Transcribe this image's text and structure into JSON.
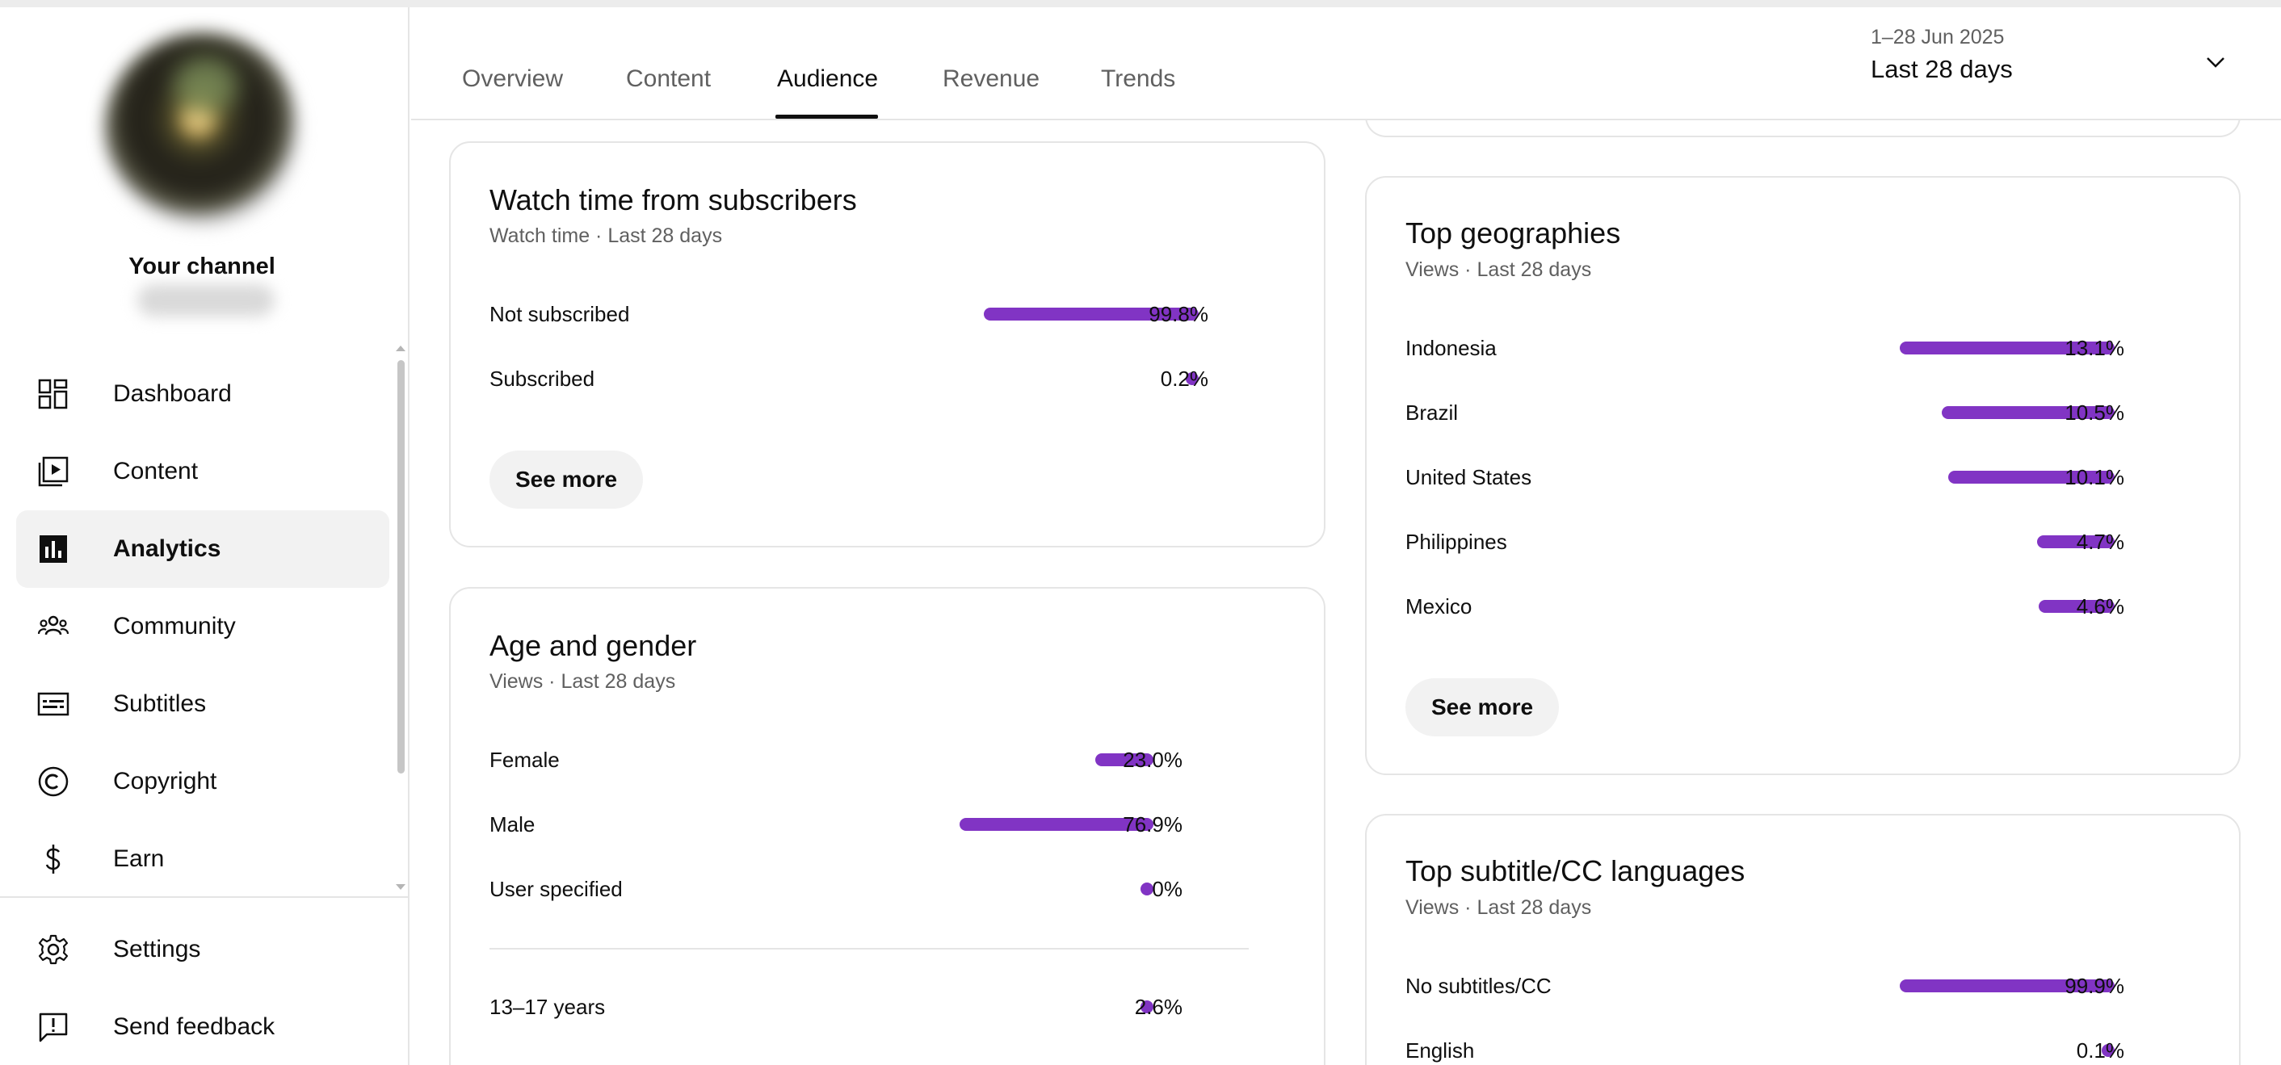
{
  "sidebar": {
    "channel_name": "Your channel",
    "nav": [
      {
        "label": "Dashboard",
        "icon": "dashboard-icon"
      },
      {
        "label": "Content",
        "icon": "content-icon"
      },
      {
        "label": "Analytics",
        "icon": "analytics-icon",
        "active": true
      },
      {
        "label": "Community",
        "icon": "community-icon"
      },
      {
        "label": "Subtitles",
        "icon": "subtitles-icon"
      },
      {
        "label": "Copyright",
        "icon": "copyright-icon"
      },
      {
        "label": "Earn",
        "icon": "earn-icon"
      }
    ],
    "bottom": [
      {
        "label": "Settings",
        "icon": "gear-icon"
      },
      {
        "label": "Send feedback",
        "icon": "feedback-icon"
      }
    ]
  },
  "header": {
    "tabs": [
      "Overview",
      "Content",
      "Audience",
      "Revenue",
      "Trends"
    ],
    "active_tab": "Audience",
    "date_range": "1–28 Jun 2025",
    "date_label": "Last 28 days"
  },
  "cards": {
    "watch_time": {
      "title": "Watch time from subscribers",
      "subtitle": "Watch time · Last 28 days",
      "rows": [
        {
          "label": "Not subscribed",
          "value": "99.8%",
          "fraction": 0.998
        },
        {
          "label": "Subscribed",
          "value": "0.2%",
          "fraction": 0.002
        }
      ],
      "see_more": "See more"
    },
    "age_gender": {
      "title": "Age and gender",
      "subtitle": "Views · Last 28 days",
      "gender_rows": [
        {
          "label": "Female",
          "value": "23.0%",
          "fraction": 0.23
        },
        {
          "label": "Male",
          "value": "76.9%",
          "fraction": 0.769
        },
        {
          "label": "User specified",
          "value": "0%",
          "fraction": 0
        }
      ],
      "age_rows": [
        {
          "label": "13–17 years",
          "value": "2.6%",
          "fraction": 0.026
        }
      ]
    },
    "geographies": {
      "title": "Top geographies",
      "subtitle": "Views · Last 28 days",
      "rows": [
        {
          "label": "Indonesia",
          "value": "13.1%",
          "fraction": 0.131
        },
        {
          "label": "Brazil",
          "value": "10.5%",
          "fraction": 0.105
        },
        {
          "label": "United States",
          "value": "10.1%",
          "fraction": 0.101
        },
        {
          "label": "Philippines",
          "value": "4.7%",
          "fraction": 0.047
        },
        {
          "label": "Mexico",
          "value": "4.6%",
          "fraction": 0.046
        }
      ],
      "see_more": "See more"
    },
    "subtitles": {
      "title": "Top subtitle/CC languages",
      "subtitle": "Views · Last 28 days",
      "rows": [
        {
          "label": "No subtitles/CC",
          "value": "99.9%",
          "fraction": 0.999
        },
        {
          "label": "English",
          "value": "0.1%",
          "fraction": 0.001
        }
      ]
    }
  },
  "colors": {
    "accent": "#8134c4",
    "text": "#0f0f0f",
    "muted": "#606060",
    "border": "#e5e5e5"
  }
}
